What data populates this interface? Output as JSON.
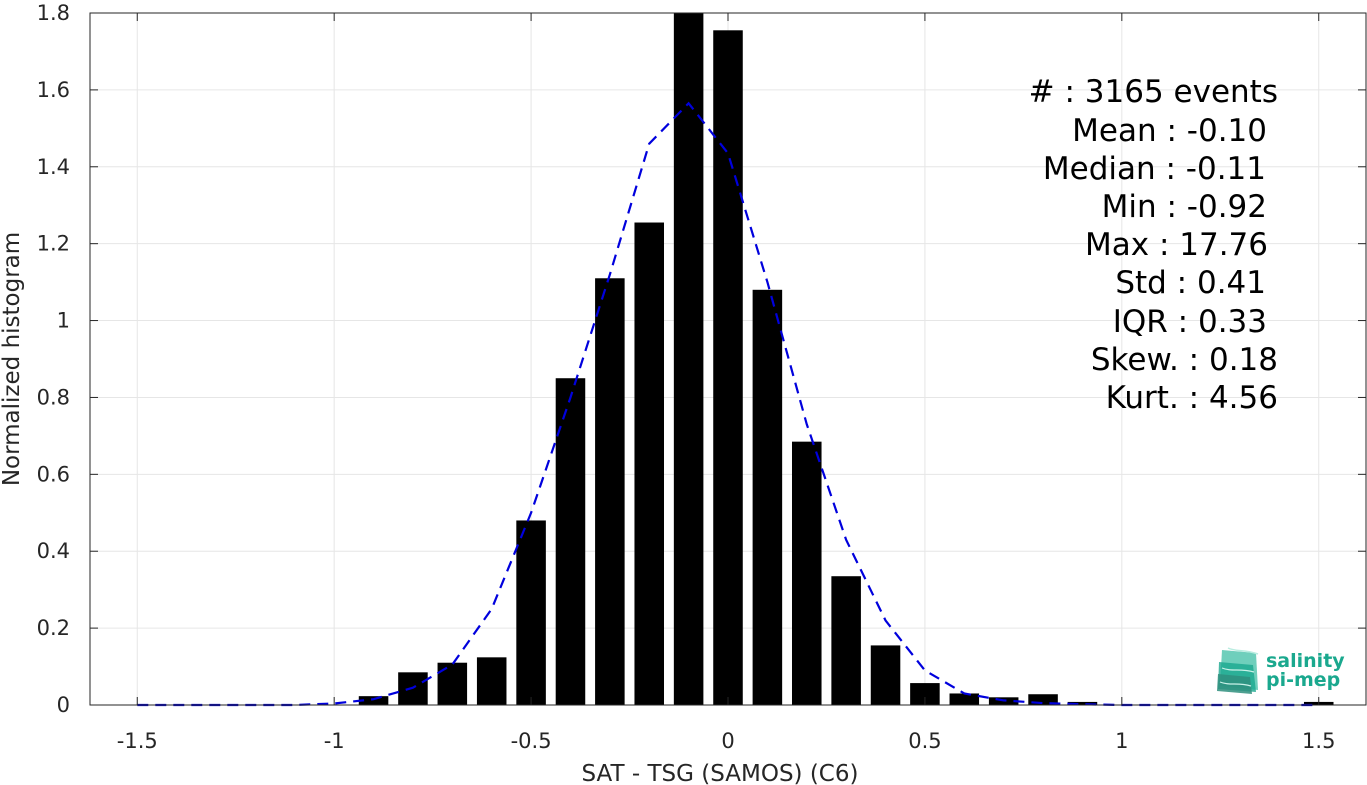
{
  "chart_data": {
    "type": "bar",
    "xlabel": "SAT - TSG (SAMOS) (C6)",
    "ylabel": "Normalized histogram",
    "xlim": [
      -1.62,
      1.62
    ],
    "ylim": [
      0,
      1.8
    ],
    "xticks": [
      -1.5,
      -1,
      -0.5,
      0,
      0.5,
      1,
      1.5
    ],
    "xtick_labels": [
      "-1.5",
      "-1",
      "-0.5",
      "0",
      "0.5",
      "1",
      "1.5"
    ],
    "yticks": [
      0,
      0.2,
      0.4,
      0.6,
      0.8,
      1.0,
      1.2,
      1.4,
      1.6,
      1.8
    ],
    "ytick_labels": [
      "0",
      "0.2",
      "0.4",
      "0.6",
      "0.8",
      "1",
      "1.2",
      "1.4",
      "1.6",
      "1.8"
    ],
    "grid": true,
    "bar_color": "#000000",
    "fit_color": "#0000dd",
    "bins": [
      {
        "x": -0.9,
        "y": 0.023
      },
      {
        "x": -0.8,
        "y": 0.085
      },
      {
        "x": -0.7,
        "y": 0.11
      },
      {
        "x": -0.6,
        "y": 0.124
      },
      {
        "x": -0.5,
        "y": 0.48
      },
      {
        "x": -0.4,
        "y": 0.85
      },
      {
        "x": -0.3,
        "y": 1.11
      },
      {
        "x": -0.2,
        "y": 1.255
      },
      {
        "x": -0.1,
        "y": 1.8
      },
      {
        "x": 0.0,
        "y": 1.755
      },
      {
        "x": 0.1,
        "y": 1.08
      },
      {
        "x": 0.2,
        "y": 0.685
      },
      {
        "x": 0.3,
        "y": 0.335
      },
      {
        "x": 0.4,
        "y": 0.155
      },
      {
        "x": 0.5,
        "y": 0.057
      },
      {
        "x": 0.6,
        "y": 0.03
      },
      {
        "x": 0.7,
        "y": 0.02
      },
      {
        "x": 0.8,
        "y": 0.028
      },
      {
        "x": 0.9,
        "y": 0.008
      },
      {
        "x": 1.5,
        "y": 0.008
      }
    ],
    "fit_curve": {
      "x": [
        -1.5,
        -1.4,
        -1.3,
        -1.2,
        -1.1,
        -1.0,
        -0.9,
        -0.8,
        -0.7,
        -0.6,
        -0.5,
        -0.4,
        -0.3,
        -0.2,
        -0.1,
        0.0,
        0.1,
        0.2,
        0.3,
        0.4,
        0.5,
        0.6,
        0.7,
        0.8,
        0.9,
        1.0,
        1.1,
        1.2,
        1.3,
        1.4,
        1.5
      ],
      "y": [
        0.0,
        0.0,
        0.0,
        0.0,
        0.0,
        0.004,
        0.015,
        0.045,
        0.105,
        0.25,
        0.5,
        0.8,
        1.12,
        1.46,
        1.565,
        1.435,
        1.1,
        0.73,
        0.43,
        0.22,
        0.09,
        0.03,
        0.012,
        0.005,
        0.002,
        0.0,
        0.0,
        0.0,
        0.0,
        0.0,
        0.0
      ]
    }
  },
  "stats": [
    {
      "label": "#  : 3165 events"
    },
    {
      "label": "Mean : -0.10"
    },
    {
      "label": "Median : -0.11"
    },
    {
      "label": "Min : -0.92"
    },
    {
      "label": "Max : 17.76"
    },
    {
      "label": "Std : 0.41"
    },
    {
      "label": "IQR : 0.33"
    },
    {
      "label": "Skew. : 0.18"
    },
    {
      "label": "Kurt. : 4.56"
    }
  ],
  "logo": {
    "line1": "salinity",
    "line2": "pi-mep",
    "color": "#1aa88e"
  }
}
